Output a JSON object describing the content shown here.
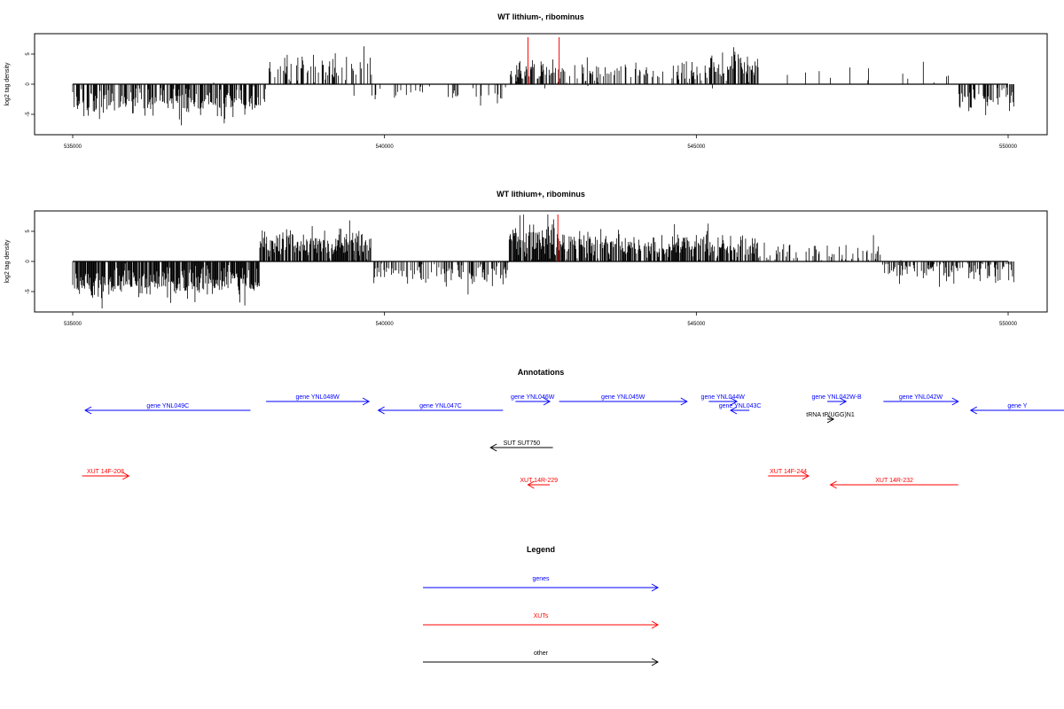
{
  "chart_data": [
    {
      "type": "bar",
      "title": "WT lithium-, ribominus",
      "ylabel": "log2 tag density",
      "xlabel": "",
      "xlim": [
        535000,
        550000
      ],
      "ylim": [
        -8,
        8
      ],
      "xticks": [
        535000,
        540000,
        545000,
        550000
      ],
      "yticks": [
        -5,
        0,
        5
      ],
      "markers": [
        542300,
        542800
      ],
      "marker_color": "#ff0000",
      "segments": [
        {
          "start": 535000,
          "end": 538100,
          "density": 0.55,
          "mean": -3.0,
          "spread": 1.3
        },
        {
          "start": 538100,
          "end": 539800,
          "density": 0.45,
          "mean": 2.3,
          "spread": 1.2
        },
        {
          "start": 539800,
          "end": 542000,
          "density": 0.12,
          "mean": -1.5,
          "spread": 0.8
        },
        {
          "start": 542000,
          "end": 542900,
          "density": 0.6,
          "mean": 2.0,
          "spread": 1.0
        },
        {
          "start": 542900,
          "end": 545200,
          "density": 0.3,
          "mean": 2.0,
          "spread": 1.0
        },
        {
          "start": 545200,
          "end": 546000,
          "density": 0.6,
          "mean": 3.0,
          "spread": 1.4
        },
        {
          "start": 546000,
          "end": 549200,
          "density": 0.08,
          "mean": 2.0,
          "spread": 1.0
        },
        {
          "start": 549200,
          "end": 550100,
          "density": 0.45,
          "mean": -2.5,
          "spread": 1.0
        }
      ]
    },
    {
      "type": "bar",
      "title": "WT lithium+, ribominus",
      "ylabel": "log2 tag density",
      "xlabel": "",
      "xlim": [
        535000,
        550000
      ],
      "ylim": [
        -8,
        8
      ],
      "xticks": [
        535000,
        540000,
        545000,
        550000
      ],
      "yticks": [
        -5,
        0,
        5
      ],
      "markers": [
        542230,
        542780
      ],
      "marker_color": "#ff0000",
      "segments": [
        {
          "start": 535000,
          "end": 538000,
          "density": 0.9,
          "mean": -3.5,
          "spread": 1.5
        },
        {
          "start": 538000,
          "end": 539800,
          "density": 0.85,
          "mean": 3.0,
          "spread": 1.4
        },
        {
          "start": 539800,
          "end": 542000,
          "density": 0.45,
          "mean": -2.0,
          "spread": 1.0
        },
        {
          "start": 542000,
          "end": 542900,
          "density": 0.95,
          "mean": 3.5,
          "spread": 1.5
        },
        {
          "start": 542900,
          "end": 546000,
          "density": 0.75,
          "mean": 2.6,
          "spread": 1.2
        },
        {
          "start": 546000,
          "end": 548000,
          "density": 0.3,
          "mean": 1.2,
          "spread": 1.0
        },
        {
          "start": 548000,
          "end": 550100,
          "density": 0.5,
          "mean": -1.5,
          "spread": 1.3
        }
      ]
    }
  ],
  "annotations": {
    "title": "Annotations",
    "colors": {
      "genes": "#0000ff",
      "xuts": "#ff0000",
      "other": "#000000"
    },
    "items": [
      {
        "label": "gene YNL049C",
        "type": "genes",
        "start": 535200,
        "end": 537850,
        "row": 0,
        "strand": "-"
      },
      {
        "label": "gene YNL048W",
        "type": "genes",
        "start": 538100,
        "end": 539750,
        "row": 1,
        "strand": "+"
      },
      {
        "label": "gene YNL047C",
        "type": "genes",
        "start": 539900,
        "end": 541900,
        "row": 0,
        "strand": "-"
      },
      {
        "label": "gene YNL046W",
        "type": "genes",
        "start": 542100,
        "end": 542650,
        "row": 1,
        "strand": "+"
      },
      {
        "label": "gene YNL045W",
        "type": "genes",
        "start": 542800,
        "end": 544850,
        "row": 1,
        "strand": "+"
      },
      {
        "label": "gene YNL044W",
        "type": "genes",
        "start": 545200,
        "end": 545650,
        "row": 1,
        "strand": "+"
      },
      {
        "label": "gene YNL043C",
        "type": "genes",
        "start": 545550,
        "end": 545850,
        "row": 0,
        "strand": "-"
      },
      {
        "label": "gene YNL042W-B",
        "type": "genes",
        "start": 547100,
        "end": 547400,
        "row": 1,
        "strand": "+"
      },
      {
        "label": "gene YNL042W",
        "type": "genes",
        "start": 548000,
        "end": 549200,
        "row": 1,
        "strand": "+"
      },
      {
        "label": "gene Y",
        "type": "genes",
        "start": 549400,
        "end": 551200,
        "row": 0,
        "strand": "-"
      },
      {
        "label": "tRNA tP(UGG)N1",
        "type": "other",
        "start": 547100,
        "end": 547200,
        "row": 2,
        "strand": "+"
      },
      {
        "label": "SUT SUT750",
        "type": "other",
        "start": 541700,
        "end": 542700,
        "row": 3,
        "strand": "-"
      },
      {
        "label": "XUT 14F-208",
        "type": "xuts",
        "start": 535150,
        "end": 535900,
        "row": 4,
        "strand": "+"
      },
      {
        "label": "XUT 14R-229",
        "type": "xuts",
        "start": 542300,
        "end": 542650,
        "row": 5,
        "strand": "-"
      },
      {
        "label": "XUT 14F-244",
        "type": "xuts",
        "start": 546150,
        "end": 546800,
        "row": 4,
        "strand": "+"
      },
      {
        "label": "XUT 14R-232",
        "type": "xuts",
        "start": 547150,
        "end": 549200,
        "row": 5,
        "strand": "-"
      }
    ]
  },
  "legend": {
    "title": "Legend",
    "items": [
      {
        "label": "genes",
        "color": "#0000ff"
      },
      {
        "label": "XUTs",
        "color": "#ff0000"
      },
      {
        "label": "other",
        "color": "#000000"
      }
    ]
  }
}
